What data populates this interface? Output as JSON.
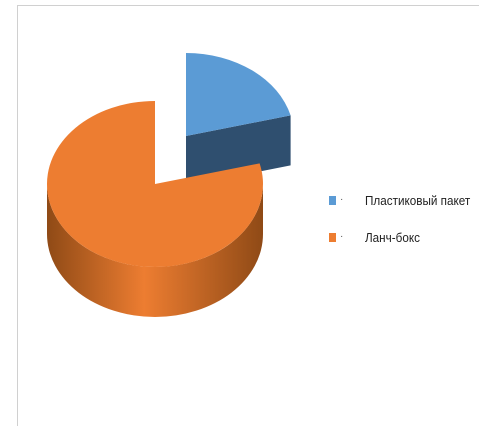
{
  "chart_data": {
    "type": "pie",
    "style": "3d-exploded",
    "series": [
      {
        "name": "Пластиковый пакет",
        "value": 21,
        "color": "#5b9bd5",
        "side_color": "#2f4f6f"
      },
      {
        "name": "Ланч-бокс",
        "value": 79,
        "color": "#ed7d31",
        "side_color": "#8f4a16"
      }
    ],
    "legend_position": "right",
    "legend": [
      {
        "label": "Пластиковый пакет",
        "marker": "·",
        "color": "#5b9bd5"
      },
      {
        "label": "Ланч-бокс",
        "marker": "·",
        "color": "#ed7d31"
      }
    ]
  }
}
